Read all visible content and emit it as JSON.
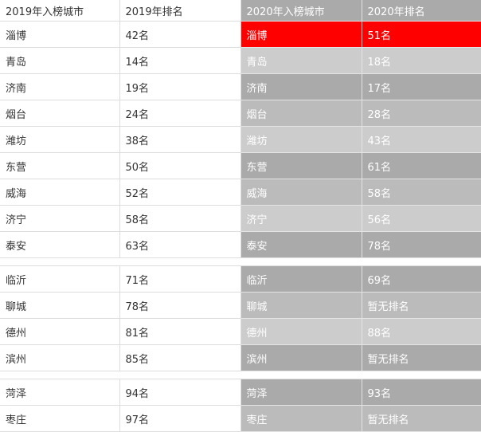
{
  "colors": {
    "header_right": "#aaaaaa",
    "highlight": "#ff0000",
    "shade_dark": "#aaaaaa",
    "shade_mid": "#bbbbbb",
    "shade_light": "#cccccc"
  },
  "headers": [
    "2019年入榜城市",
    "2019年排名",
    "2020年入榜城市",
    "2020年排名"
  ],
  "groups": [
    [
      {
        "city2019": "淄博",
        "rank2019": "42名",
        "city2020": "淄博",
        "rank2020": "51名",
        "bg": "#ff0000"
      },
      {
        "city2019": "青岛",
        "rank2019": "14名",
        "city2020": "青岛",
        "rank2020": "18名",
        "bg": "#cccccc"
      },
      {
        "city2019": "济南",
        "rank2019": "19名",
        "city2020": "济南",
        "rank2020": "17名",
        "bg": "#aaaaaa"
      },
      {
        "city2019": "烟台",
        "rank2019": "24名",
        "city2020": "烟台",
        "rank2020": "28名",
        "bg": "#bbbbbb"
      },
      {
        "city2019": "潍坊",
        "rank2019": "38名",
        "city2020": "潍坊",
        "rank2020": "43名",
        "bg": "#cccccc"
      },
      {
        "city2019": "东营",
        "rank2019": "50名",
        "city2020": "东营",
        "rank2020": "61名",
        "bg": "#aaaaaa"
      },
      {
        "city2019": "威海",
        "rank2019": "52名",
        "city2020": "威海",
        "rank2020": "58名",
        "bg": "#bbbbbb"
      },
      {
        "city2019": "济宁",
        "rank2019": "58名",
        "city2020": "济宁",
        "rank2020": "56名",
        "bg": "#cccccc"
      },
      {
        "city2019": "泰安",
        "rank2019": "63名",
        "city2020": "泰安",
        "rank2020": "78名",
        "bg": "#aaaaaa"
      }
    ],
    [
      {
        "city2019": "临沂",
        "rank2019": "71名",
        "city2020": "临沂",
        "rank2020": "69名",
        "bg": "#aaaaaa"
      },
      {
        "city2019": "聊城",
        "rank2019": "78名",
        "city2020": "聊城",
        "rank2020": "暂无排名",
        "bg": "#bbbbbb"
      },
      {
        "city2019": "德州",
        "rank2019": "81名",
        "city2020": "德州",
        "rank2020": "88名",
        "bg": "#cccccc"
      },
      {
        "city2019": "滨州",
        "rank2019": "85名",
        "city2020": "滨州",
        "rank2020": "暂无排名",
        "bg": "#aaaaaa"
      }
    ],
    [
      {
        "city2019": "菏泽",
        "rank2019": "94名",
        "city2020": "菏泽",
        "rank2020": "93名",
        "bg": "#aaaaaa"
      },
      {
        "city2019": "枣庄",
        "rank2019": "97名",
        "city2020": "枣庄",
        "rank2020": "暂无排名",
        "bg": "#bbbbbb"
      }
    ]
  ]
}
